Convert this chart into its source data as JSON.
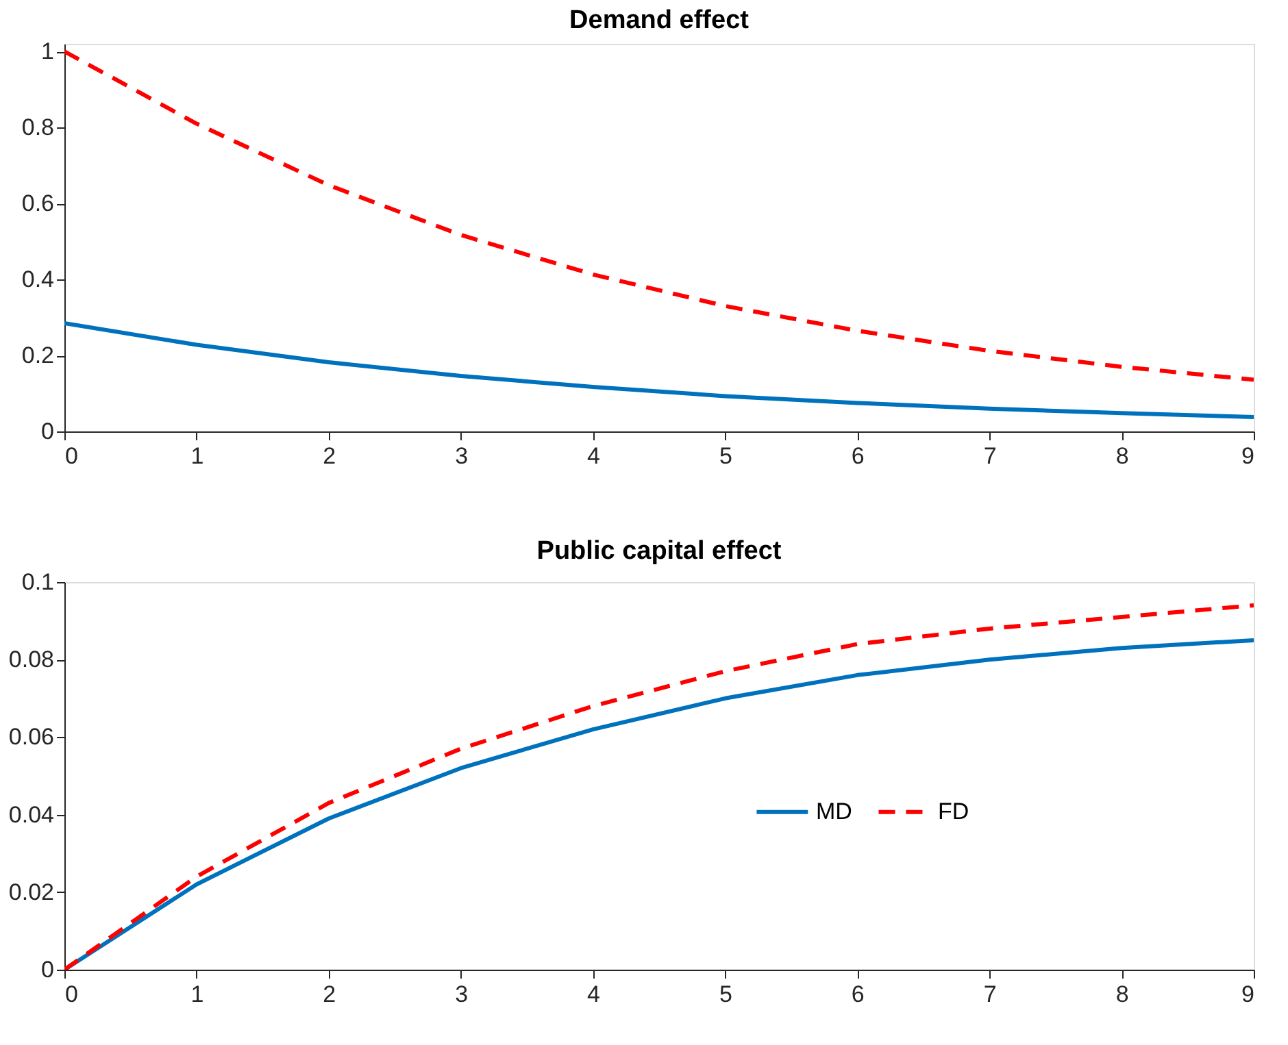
{
  "chart_data": [
    {
      "type": "line",
      "title": "Demand effect",
      "x": [
        0,
        1,
        2,
        3,
        4,
        5,
        6,
        7,
        8,
        9
      ],
      "xlim": [
        0,
        9
      ],
      "xticks": [
        0,
        1,
        2,
        3,
        4,
        5,
        6,
        7,
        8,
        9
      ],
      "ylim": [
        0,
        1.02
      ],
      "yticks": [
        0,
        0.2,
        0.4,
        0.6,
        0.8,
        1
      ],
      "grid": false,
      "legend": false,
      "series": [
        {
          "color": "#0072bd",
          "line_style": "solid",
          "values": [
            0.285,
            0.228,
            0.182,
            0.146,
            0.117,
            0.093,
            0.075,
            0.06,
            0.048,
            0.038
          ]
        },
        {
          "color": "#ff0000",
          "line_style": "dashed",
          "values": [
            1.0,
            0.81,
            0.648,
            0.517,
            0.413,
            0.33,
            0.265,
            0.212,
            0.17,
            0.136
          ]
        }
      ]
    },
    {
      "type": "line",
      "title": "Public capital effect",
      "x": [
        0,
        1,
        2,
        3,
        4,
        5,
        6,
        7,
        8,
        9
      ],
      "xlim": [
        0,
        9
      ],
      "xticks": [
        0,
        1,
        2,
        3,
        4,
        5,
        6,
        7,
        8,
        9
      ],
      "ylim": [
        0,
        0.1
      ],
      "yticks": [
        0,
        0.02,
        0.04,
        0.06,
        0.08,
        0.1
      ],
      "grid": false,
      "legend": "right",
      "series": [
        {
          "name": "MD",
          "color": "#0072bd",
          "line_style": "solid",
          "values": [
            0,
            0.022,
            0.039,
            0.052,
            0.062,
            0.07,
            0.076,
            0.08,
            0.083,
            0.085
          ]
        },
        {
          "name": "FD",
          "color": "#ff0000",
          "line_style": "dashed",
          "values": [
            0,
            0.024,
            0.043,
            0.057,
            0.068,
            0.077,
            0.084,
            0.088,
            0.091,
            0.094
          ]
        }
      ]
    }
  ]
}
